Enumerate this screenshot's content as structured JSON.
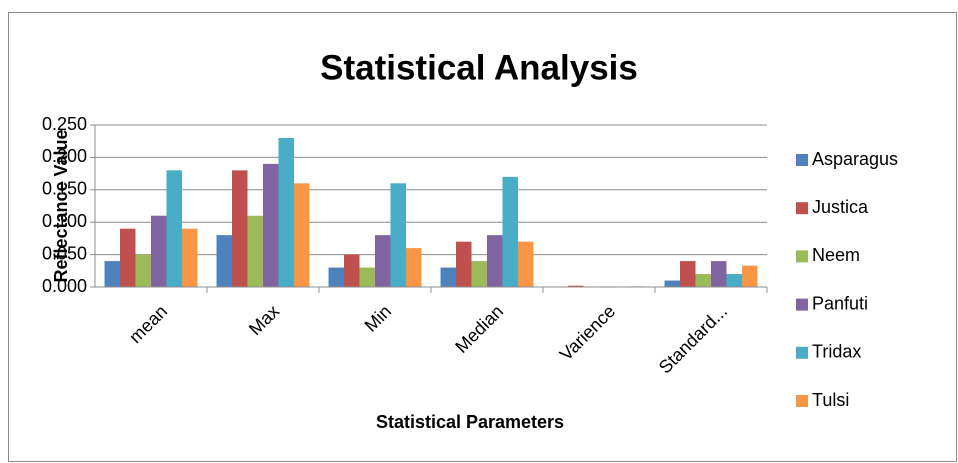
{
  "chart_data": {
    "type": "bar",
    "title": "Statistical Analysis",
    "x_label": "Statistical Parameters",
    "y_label": "Reflectance Value",
    "categories": [
      "mean",
      "Max",
      "Min",
      "Median",
      "Varience",
      "Standard..."
    ],
    "series": [
      {
        "name": "Asparagus",
        "color": "#4f81bd",
        "values": [
          0.04,
          0.08,
          0.03,
          0.03,
          0.0005,
          0.01
        ]
      },
      {
        "name": "Justica",
        "color": "#c0504d",
        "values": [
          0.09,
          0.18,
          0.05,
          0.07,
          0.002,
          0.04
        ]
      },
      {
        "name": "Neem",
        "color": "#9bbb59",
        "values": [
          0.05,
          0.11,
          0.03,
          0.04,
          0.0003,
          0.02
        ]
      },
      {
        "name": "Panfuti",
        "color": "#8064a2",
        "values": [
          0.11,
          0.19,
          0.08,
          0.08,
          0.0008,
          0.04
        ]
      },
      {
        "name": "Tridax",
        "color": "#4bacc6",
        "values": [
          0.18,
          0.23,
          0.16,
          0.17,
          0.0005,
          0.02
        ]
      },
      {
        "name": "Tulsi",
        "color": "#f79646",
        "values": [
          0.09,
          0.16,
          0.06,
          0.07,
          0.001,
          0.033
        ]
      }
    ],
    "ylim": [
      0,
      0.25
    ],
    "yticks": [
      {
        "value": 0,
        "label": "0.000"
      },
      {
        "value": 0.05,
        "label": "0.050"
      },
      {
        "value": 0.1,
        "label": "0.100"
      },
      {
        "value": 0.15,
        "label": "0.150"
      },
      {
        "value": 0.2,
        "label": "0.200"
      },
      {
        "value": 0.25,
        "label": "0.250"
      }
    ],
    "grid": true,
    "legend": "right"
  }
}
